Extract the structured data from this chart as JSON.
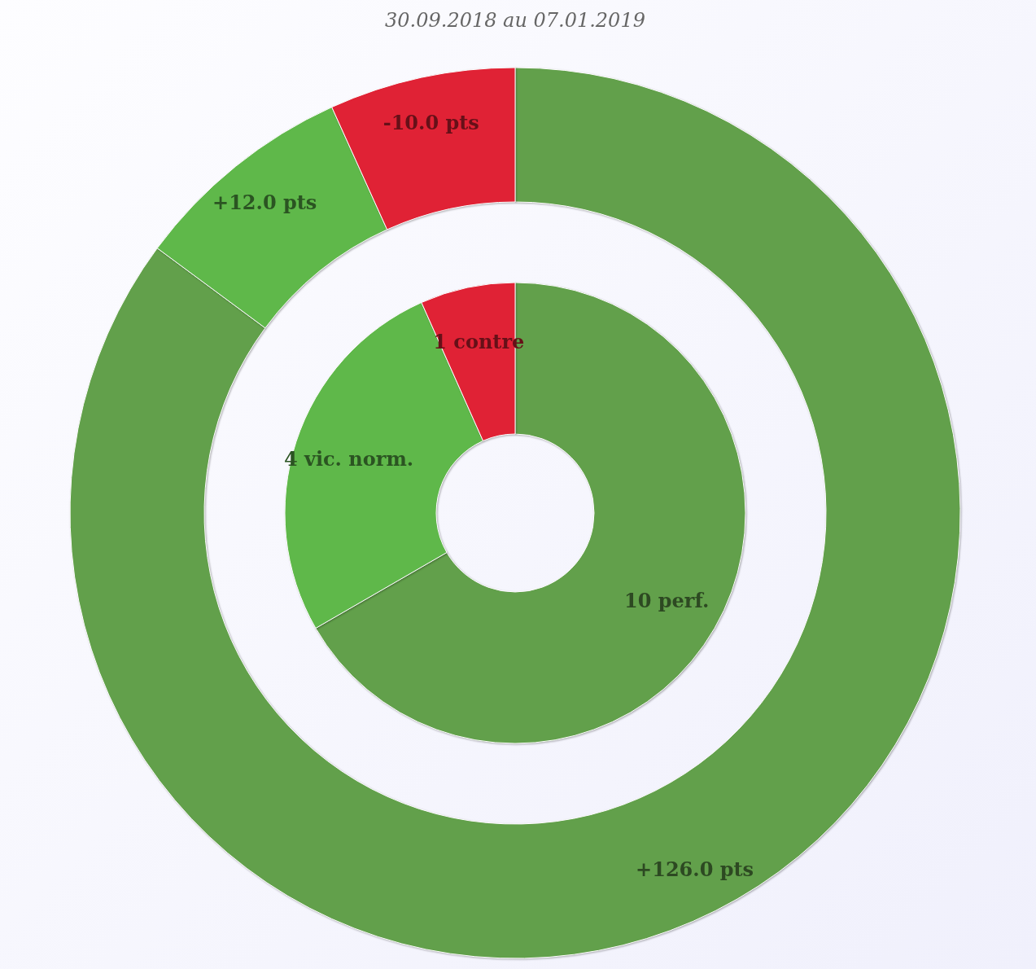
{
  "chart_data": [
    {
      "type": "donut",
      "title": "30.09.2018 au 07.01.2019",
      "categories": [
        "+126.0 pts",
        "+12.0 pts",
        "-10.0 pts"
      ],
      "values": [
        126,
        12,
        10
      ],
      "colors": [
        "#62a04b",
        "#5fb84a",
        "#e02235"
      ]
    },
    {
      "type": "donut",
      "categories": [
        "10 perf.",
        "4 vic. norm.",
        "1 contre"
      ],
      "values": [
        10,
        4,
        1
      ],
      "colors": [
        "#62a04b",
        "#5fb84a",
        "#e02235"
      ]
    }
  ]
}
